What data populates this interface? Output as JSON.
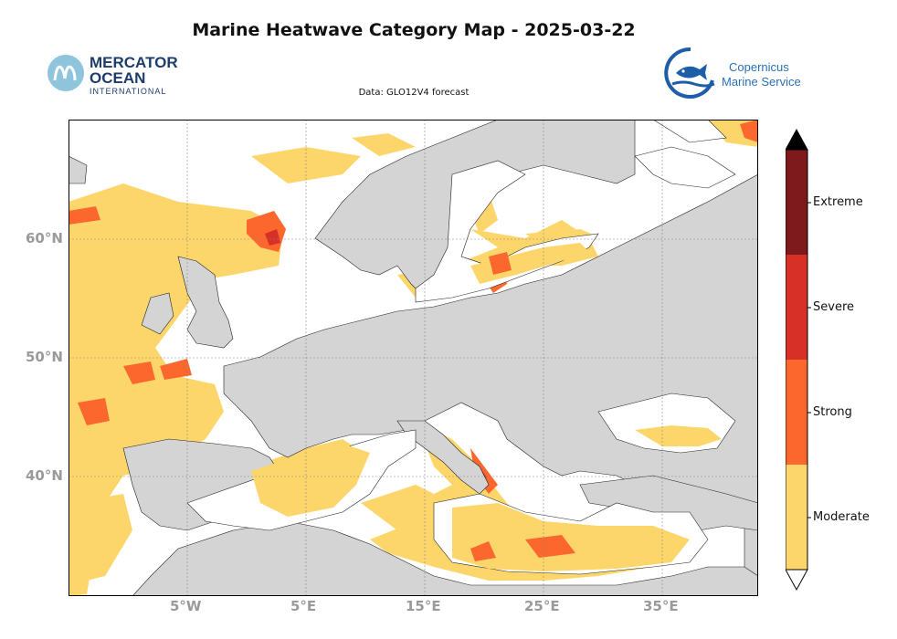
{
  "title": "Marine Heatwave Category Map - 2025-03-22",
  "subtitle": "Data: GLO12V4 forecast",
  "logos": {
    "mercator": {
      "line1": "MERCATOR",
      "line2": "OCEAN",
      "line3": "INTERNATIONAL",
      "icon": "mercator-m-icon"
    },
    "copernicus": {
      "line1": "Copernicus",
      "line2": "Marine Service",
      "icon": "fish-circle-icon"
    }
  },
  "map": {
    "lat_labels": [
      "60°N",
      "50°N",
      "40°N"
    ],
    "lon_labels": [
      "5°W",
      "5°E",
      "15°E",
      "25°E",
      "35°E"
    ],
    "colors": {
      "land": "#d4d4d4",
      "sea": "#ffffff",
      "moderate": "#fdd66b",
      "strong": "#fc672e",
      "severe": "#d73027",
      "extreme": "#7f1a1c"
    }
  },
  "colorbar": {
    "categories": [
      "Moderate",
      "Strong",
      "Severe",
      "Extreme"
    ],
    "colors": [
      "#fdd66b",
      "#fc672e",
      "#d73027",
      "#7f1a1c"
    ],
    "over_color": "#000000",
    "under_color": "#ffffff"
  }
}
